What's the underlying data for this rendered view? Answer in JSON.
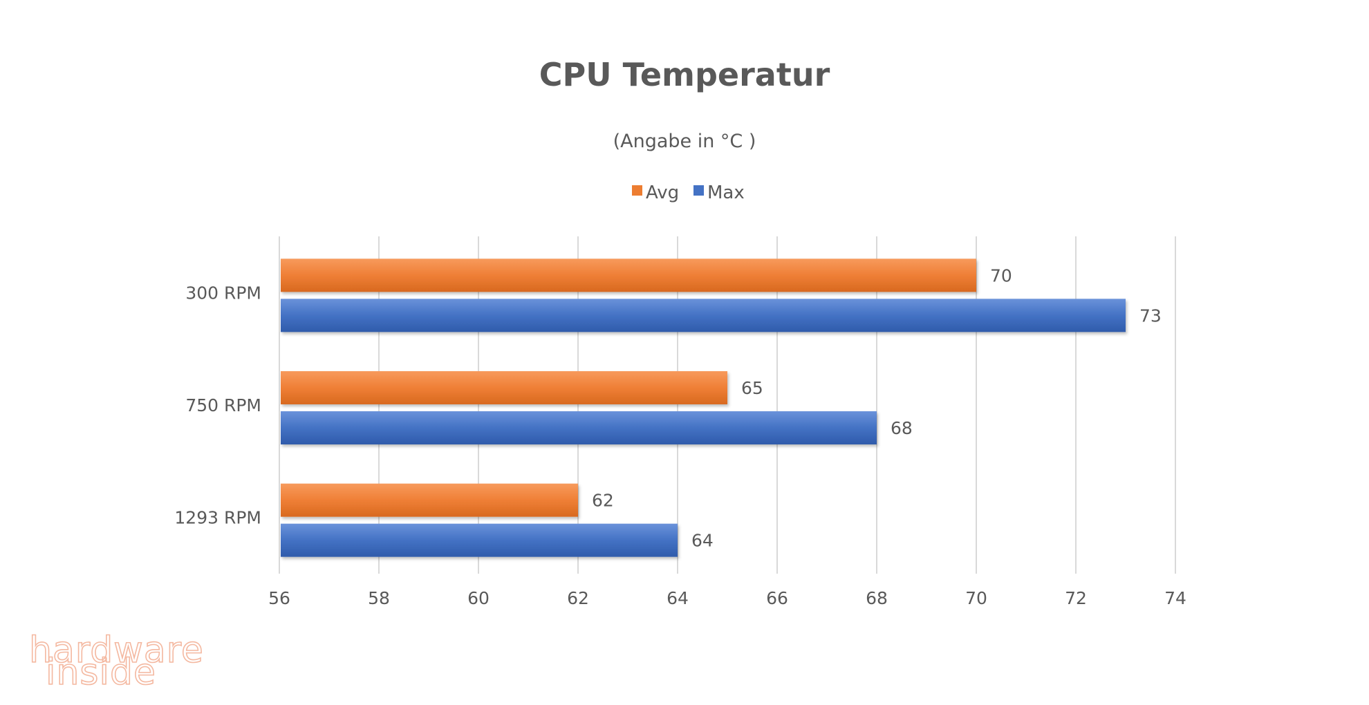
{
  "chart_data": {
    "type": "bar",
    "orientation": "horizontal",
    "title": "CPU Temperatur",
    "subtitle": "(Angabe in °C )",
    "categories": [
      "300 RPM",
      "750 RPM",
      "1293 RPM"
    ],
    "series": [
      {
        "name": "Avg",
        "values": [
          70,
          65,
          62
        ],
        "color": "#ed7d31"
      },
      {
        "name": "Max",
        "values": [
          73,
          68,
          64
        ],
        "color": "#4472c4"
      }
    ],
    "xlim": [
      56,
      74
    ],
    "xticks": [
      "56",
      "58",
      "60",
      "62",
      "64",
      "66",
      "68",
      "70",
      "72",
      "74"
    ],
    "grid": true,
    "legend_position": "top",
    "data_labels": true
  },
  "watermark": {
    "line1": "hardware",
    "line2": "inside",
    "color_primary": "#f4b8a0",
    "color_secondary": "#a9bde6"
  }
}
